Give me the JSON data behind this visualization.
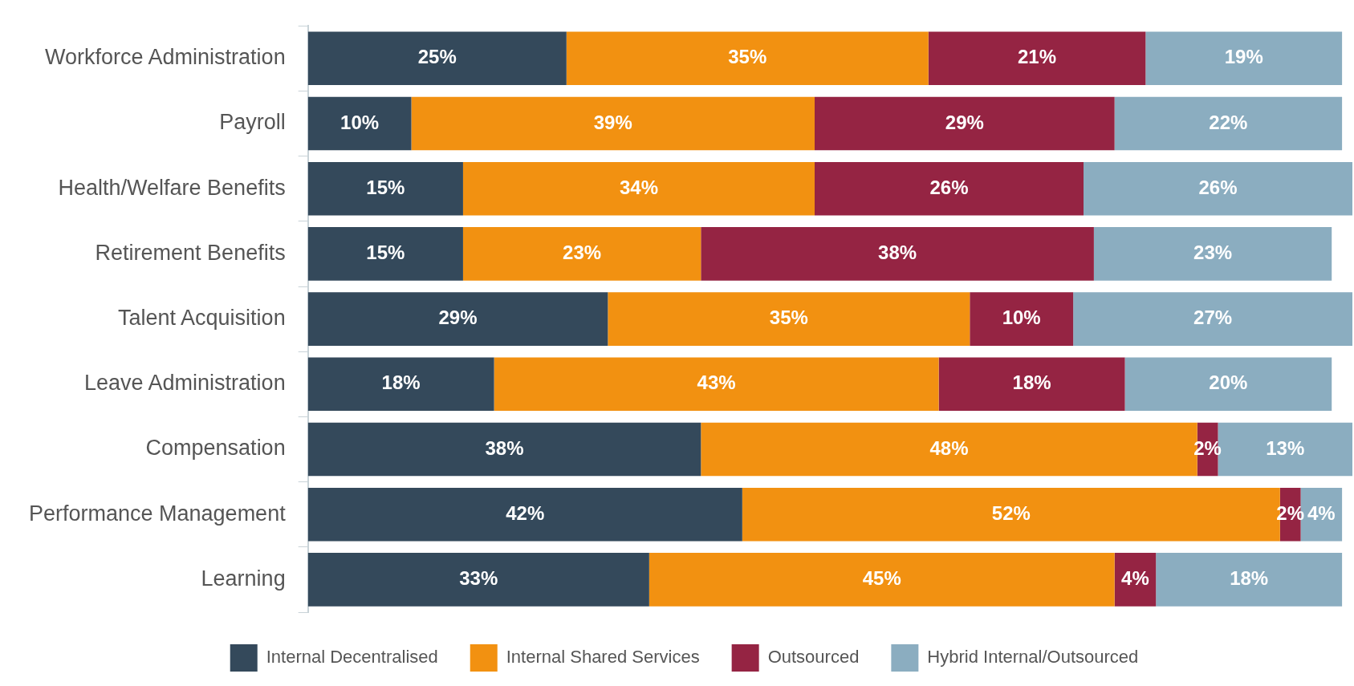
{
  "chart_data": {
    "type": "bar",
    "orientation": "horizontal",
    "stacked": true,
    "legend": "bottom",
    "tick_labels": "y",
    "categories": [
      "Workforce Administration",
      "Payroll",
      "Health/Welfare Benefits",
      "Retirement Benefits",
      "Talent Acquisition",
      "Leave Administration",
      "Compensation",
      "Performance Management",
      "Learning"
    ],
    "series": [
      {
        "name": "Internal Decentralised",
        "color": "#34495b",
        "values": [
          25,
          10,
          15,
          15,
          29,
          18,
          38,
          42,
          33
        ],
        "value_labels": [
          "25%",
          "10%",
          "15%",
          "15%",
          "29%",
          "18%",
          "38%",
          "42%",
          "33%"
        ]
      },
      {
        "name": "Internal Shared Services",
        "color": "#f29111",
        "values": [
          35,
          39,
          34,
          23,
          35,
          43,
          48,
          52,
          45
        ],
        "value_labels": [
          "35%",
          "39%",
          "34%",
          "23%",
          "35%",
          "43%",
          "48%",
          "52%",
          "45%"
        ]
      },
      {
        "name": "Outsourced",
        "color": "#952443",
        "values": [
          21,
          29,
          26,
          38,
          10,
          18,
          2,
          2,
          4
        ],
        "value_labels": [
          "21%",
          "29%",
          "26%",
          "38%",
          "10%",
          "18%",
          "2%",
          "2%",
          "4%"
        ]
      },
      {
        "name": "Hybrid Internal/Outsourced",
        "color": "#8badc0",
        "values": [
          19,
          22,
          26,
          23,
          27,
          20,
          13,
          4,
          18
        ],
        "value_labels": [
          "19%",
          "22%",
          "26%",
          "23%",
          "27%",
          "20%",
          "13%",
          "4%",
          "18%"
        ]
      }
    ]
  }
}
